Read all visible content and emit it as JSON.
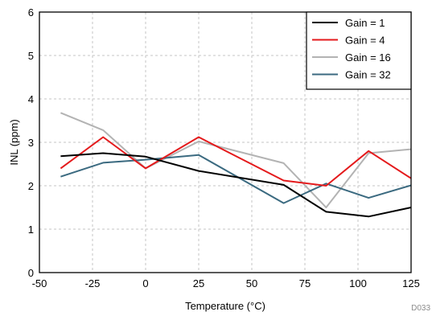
{
  "chart_data": {
    "type": "line",
    "xlabel": "Temperature (°C)",
    "ylabel": "INL (ppm)",
    "xlim": [
      -50,
      125
    ],
    "ylim": [
      0,
      6
    ],
    "x_ticks": [
      -50,
      -25,
      0,
      25,
      50,
      75,
      100,
      125
    ],
    "y_ticks": [
      0,
      1,
      2,
      3,
      4,
      5,
      6
    ],
    "x_tick_labels": [
      "-50",
      "-25",
      "0",
      "25",
      "50",
      "75",
      "100",
      "125"
    ],
    "y_tick_labels": [
      "0",
      "1",
      "2",
      "3",
      "4",
      "5",
      "6"
    ],
    "grid": true,
    "legend_position": "top-right",
    "figure_id": "D033",
    "x": [
      -40,
      -20,
      0,
      25,
      65,
      85,
      105,
      125
    ],
    "series": [
      {
        "name": "Gain = 1",
        "color": "#000000",
        "values": [
          2.68,
          2.75,
          2.67,
          2.34,
          2.02,
          1.4,
          1.29,
          1.5
        ]
      },
      {
        "name": "Gain = 4",
        "color": "#e41a1c",
        "values": [
          2.4,
          3.12,
          2.4,
          3.12,
          2.12,
          2.0,
          2.8,
          2.17
        ]
      },
      {
        "name": "Gain = 16",
        "color": "#b3b3b3",
        "values": [
          3.68,
          3.28,
          2.4,
          3.02,
          2.52,
          1.5,
          2.75,
          2.84
        ]
      },
      {
        "name": "Gain = 32",
        "color": "#3b6a80",
        "values": [
          2.21,
          2.53,
          2.6,
          2.71,
          1.6,
          2.05,
          1.72,
          2.01
        ]
      }
    ]
  }
}
